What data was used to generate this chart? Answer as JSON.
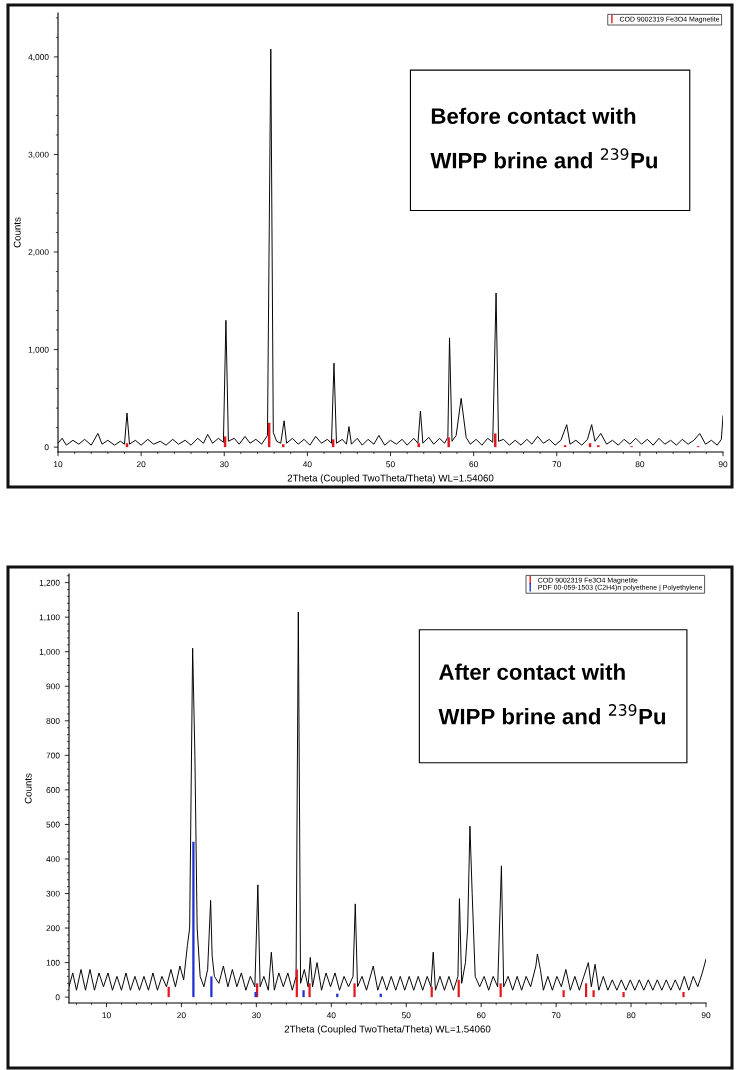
{
  "chart_data": [
    {
      "type": "line",
      "xlabel": "2Theta (Coupled TwoTheta/Theta) WL=1.54060",
      "ylabel": "Counts",
      "annotations": [
        "Before contact with\n\nWIPP brine and $^{239}$Pu"
      ],
      "xlim": [
        10,
        90
      ],
      "xticks": [
        10,
        20,
        30,
        40,
        50,
        60,
        70,
        80,
        90
      ],
      "ylim": [
        -50,
        4450
      ],
      "yticks": [
        0,
        {
          "value": 1000,
          "label": "1,000"
        },
        {
          "value": 2000,
          "label": "2,000"
        },
        {
          "value": 3000,
          "label": "3,000"
        },
        {
          "value": 4000,
          "label": "4,000"
        }
      ],
      "legend": "top right",
      "series": [
        {
          "color": "#000000",
          "x": [
            10,
            10.5,
            11,
            11.8,
            12.5,
            13.2,
            14,
            14.8,
            15.3,
            16,
            16.8,
            17.5,
            18.0,
            18.3,
            18.6,
            19.3,
            20,
            20.8,
            21.5,
            22.3,
            23,
            23.8,
            24.5,
            25.3,
            26,
            26.8,
            27.5,
            28,
            28.6,
            29.3,
            29.9,
            30.2,
            30.5,
            31.2,
            31.8,
            32.5,
            33.1,
            33.8,
            34.5,
            35.2,
            35.6,
            35.9,
            36.3,
            36.8,
            37.2,
            37.5,
            38.2,
            38.9,
            39.6,
            40.3,
            41,
            41.7,
            42.4,
            42.9,
            43.2,
            43.5,
            44.2,
            44.7,
            45.0,
            45.3,
            46,
            46.6,
            47.3,
            48,
            48.6,
            49.3,
            50,
            50.7,
            51.4,
            52,
            52.8,
            53.3,
            53.6,
            53.9,
            54.6,
            55.2,
            55.9,
            56.5,
            56.9,
            57.1,
            57.4,
            57.9,
            58.5,
            59.1,
            59.6,
            60.3,
            61,
            61.7,
            62.3,
            62.7,
            63.0,
            63.6,
            64.3,
            65,
            65.7,
            66.4,
            67,
            67.7,
            68.4,
            69.1,
            69.8,
            70.5,
            71.2,
            71.6,
            72.3,
            73,
            73.7,
            74.2,
            74.6,
            75.3,
            76,
            76.7,
            77.4,
            78.1,
            78.8,
            79.5,
            80.2,
            80.9,
            81.6,
            82.3,
            83,
            83.7,
            84.4,
            85.1,
            85.8,
            86.5,
            87.2,
            87.9,
            88.6,
            89.3,
            89.8,
            90
          ],
          "values": [
            40,
            90,
            20,
            70,
            30,
            80,
            20,
            140,
            30,
            70,
            20,
            60,
            30,
            350,
            30,
            70,
            20,
            80,
            30,
            60,
            20,
            80,
            30,
            70,
            20,
            90,
            40,
            130,
            40,
            90,
            50,
            1300,
            60,
            90,
            30,
            110,
            40,
            80,
            30,
            120,
            4080,
            150,
            60,
            40,
            270,
            40,
            90,
            30,
            80,
            20,
            110,
            40,
            80,
            40,
            860,
            40,
            80,
            30,
            210,
            30,
            90,
            20,
            80,
            30,
            120,
            20,
            70,
            30,
            80,
            20,
            90,
            40,
            370,
            40,
            100,
            30,
            90,
            40,
            100,
            1120,
            60,
            120,
            500,
            100,
            30,
            80,
            20,
            90,
            50,
            1580,
            60,
            80,
            20,
            70,
            20,
            80,
            30,
            110,
            40,
            80,
            20,
            70,
            230,
            30,
            70,
            20,
            80,
            230,
            60,
            140,
            30,
            70,
            20,
            80,
            30,
            90,
            30,
            80,
            20,
            90,
            30,
            70,
            20,
            80,
            30,
            70,
            140,
            30,
            70,
            20,
            80,
            320
          ]
        },
        {
          "type": "bar",
          "name": "COD 9002319 Fe3O4 Magnetite",
          "color": "#e0191f",
          "x": [
            18.3,
            30.1,
            35.4,
            37.1,
            43.1,
            53.4,
            57.0,
            62.6,
            71.0,
            74.0,
            75.0,
            79.0,
            87.0
          ],
          "values": [
            40,
            110,
            250,
            30,
            80,
            40,
            100,
            140,
            20,
            40,
            20,
            10,
            10
          ]
        }
      ]
    },
    {
      "type": "line",
      "xlabel": "2Theta (Coupled TwoTheta/Theta) WL=1.54060",
      "ylabel": "Counts",
      "annotations": [
        "After contact with\n\nWIPP brine and $^{239}$Pu"
      ],
      "xlim": [
        5,
        90
      ],
      "xticks": [
        10,
        20,
        30,
        40,
        50,
        60,
        70,
        80,
        90
      ],
      "ylim": [
        -17,
        1225
      ],
      "yticks": [
        0,
        100,
        200,
        300,
        400,
        500,
        600,
        700,
        800,
        900,
        {
          "value": 1000,
          "label": "1,000"
        },
        {
          "value": 1100,
          "label": "1,100"
        },
        {
          "value": 1200,
          "label": "1,200"
        }
      ],
      "legend": "top right",
      "series": [
        {
          "color": "#000000",
          "x": [
            5,
            5.5,
            6,
            6.6,
            7.2,
            7.8,
            8.4,
            9,
            9.6,
            10.2,
            10.8,
            11.4,
            12,
            12.6,
            13.2,
            13.8,
            14.4,
            15,
            15.6,
            16.2,
            16.8,
            17.4,
            18,
            18.6,
            19.2,
            19.8,
            20.3,
            20.8,
            21.1,
            21.5,
            21.8,
            22.1,
            22.5,
            23,
            23.5,
            23.9,
            24.1,
            24.4,
            25,
            25.6,
            26.2,
            26.8,
            27.4,
            28,
            28.6,
            29.2,
            29.8,
            30.2,
            30.5,
            31,
            31.6,
            32,
            32.4,
            33,
            33.6,
            34.2,
            34.8,
            35.3,
            35.6,
            35.9,
            36.4,
            36.9,
            37.2,
            37.5,
            38.1,
            38.7,
            39.3,
            39.9,
            40.5,
            41.1,
            41.7,
            42.3,
            42.9,
            43.2,
            43.5,
            44.1,
            44.7,
            45.6,
            46.2,
            46.8,
            47.4,
            48,
            48.6,
            49.2,
            49.8,
            50.4,
            51,
            51.6,
            52.2,
            52.8,
            53.3,
            53.6,
            53.9,
            54.5,
            55.1,
            55.7,
            56.3,
            56.9,
            57.1,
            57.4,
            57.9,
            58.2,
            58.5,
            58.8,
            59.2,
            59.8,
            60.4,
            61,
            61.6,
            62.2,
            62.7,
            63,
            63.6,
            64.2,
            64.8,
            65.4,
            66,
            66.6,
            67.3,
            67.5,
            67.9,
            68.3,
            68.9,
            69.5,
            70.1,
            70.7,
            71.3,
            71.9,
            72.5,
            73.1,
            73.7,
            74.3,
            74.7,
            75.2,
            75.7,
            76.3,
            76.9,
            77.5,
            78.1,
            78.7,
            79.3,
            79.9,
            80.5,
            81.1,
            81.7,
            82.3,
            82.9,
            83.5,
            84.1,
            84.7,
            85.3,
            85.9,
            86.5,
            87.1,
            87.7,
            88.3,
            88.9,
            89.5,
            90
          ],
          "values": [
            30,
            70,
            20,
            80,
            20,
            80,
            20,
            70,
            30,
            70,
            20,
            60,
            20,
            70,
            20,
            60,
            20,
            60,
            20,
            70,
            20,
            60,
            30,
            80,
            30,
            90,
            50,
            150,
            200,
            1010,
            700,
            200,
            60,
            30,
            80,
            280,
            120,
            60,
            40,
            90,
            30,
            80,
            30,
            70,
            20,
            60,
            30,
            325,
            30,
            60,
            20,
            130,
            20,
            70,
            30,
            70,
            20,
            60,
            1115,
            40,
            80,
            30,
            115,
            30,
            100,
            20,
            70,
            30,
            70,
            20,
            60,
            30,
            60,
            270,
            30,
            60,
            20,
            90,
            20,
            60,
            20,
            60,
            20,
            60,
            20,
            60,
            20,
            60,
            20,
            60,
            30,
            130,
            20,
            60,
            20,
            60,
            20,
            60,
            285,
            40,
            100,
            200,
            495,
            300,
            60,
            30,
            60,
            20,
            60,
            30,
            380,
            30,
            60,
            20,
            60,
            20,
            60,
            30,
            90,
            125,
            80,
            20,
            60,
            20,
            60,
            30,
            80,
            20,
            60,
            20,
            60,
            100,
            30,
            95,
            20,
            60,
            20,
            50,
            20,
            50,
            20,
            50,
            20,
            50,
            20,
            50,
            20,
            50,
            20,
            50,
            20,
            50,
            20,
            60,
            20,
            60,
            30,
            70,
            110
          ]
        },
        {
          "type": "bar",
          "name": "COD 9002319 Fe3O4 Magnetite",
          "color": "#e0191f",
          "x": [
            18.3,
            30.1,
            35.4,
            37.1,
            43.1,
            53.4,
            57.0,
            62.6,
            71.0,
            74.0,
            75.0,
            79.0,
            87.0
          ],
          "values": [
            30,
            40,
            80,
            40,
            40,
            30,
            50,
            40,
            20,
            40,
            20,
            15,
            15
          ]
        },
        {
          "type": "bar",
          "name": "PDF 00-059-1503 (C2H4)n polyethene | Polyethylene",
          "color": "#1f2fd0",
          "x": [
            21.6,
            24.0,
            29.9,
            36.3,
            40.8,
            46.6
          ],
          "values": [
            450,
            60,
            15,
            20,
            10,
            10
          ]
        }
      ]
    }
  ]
}
